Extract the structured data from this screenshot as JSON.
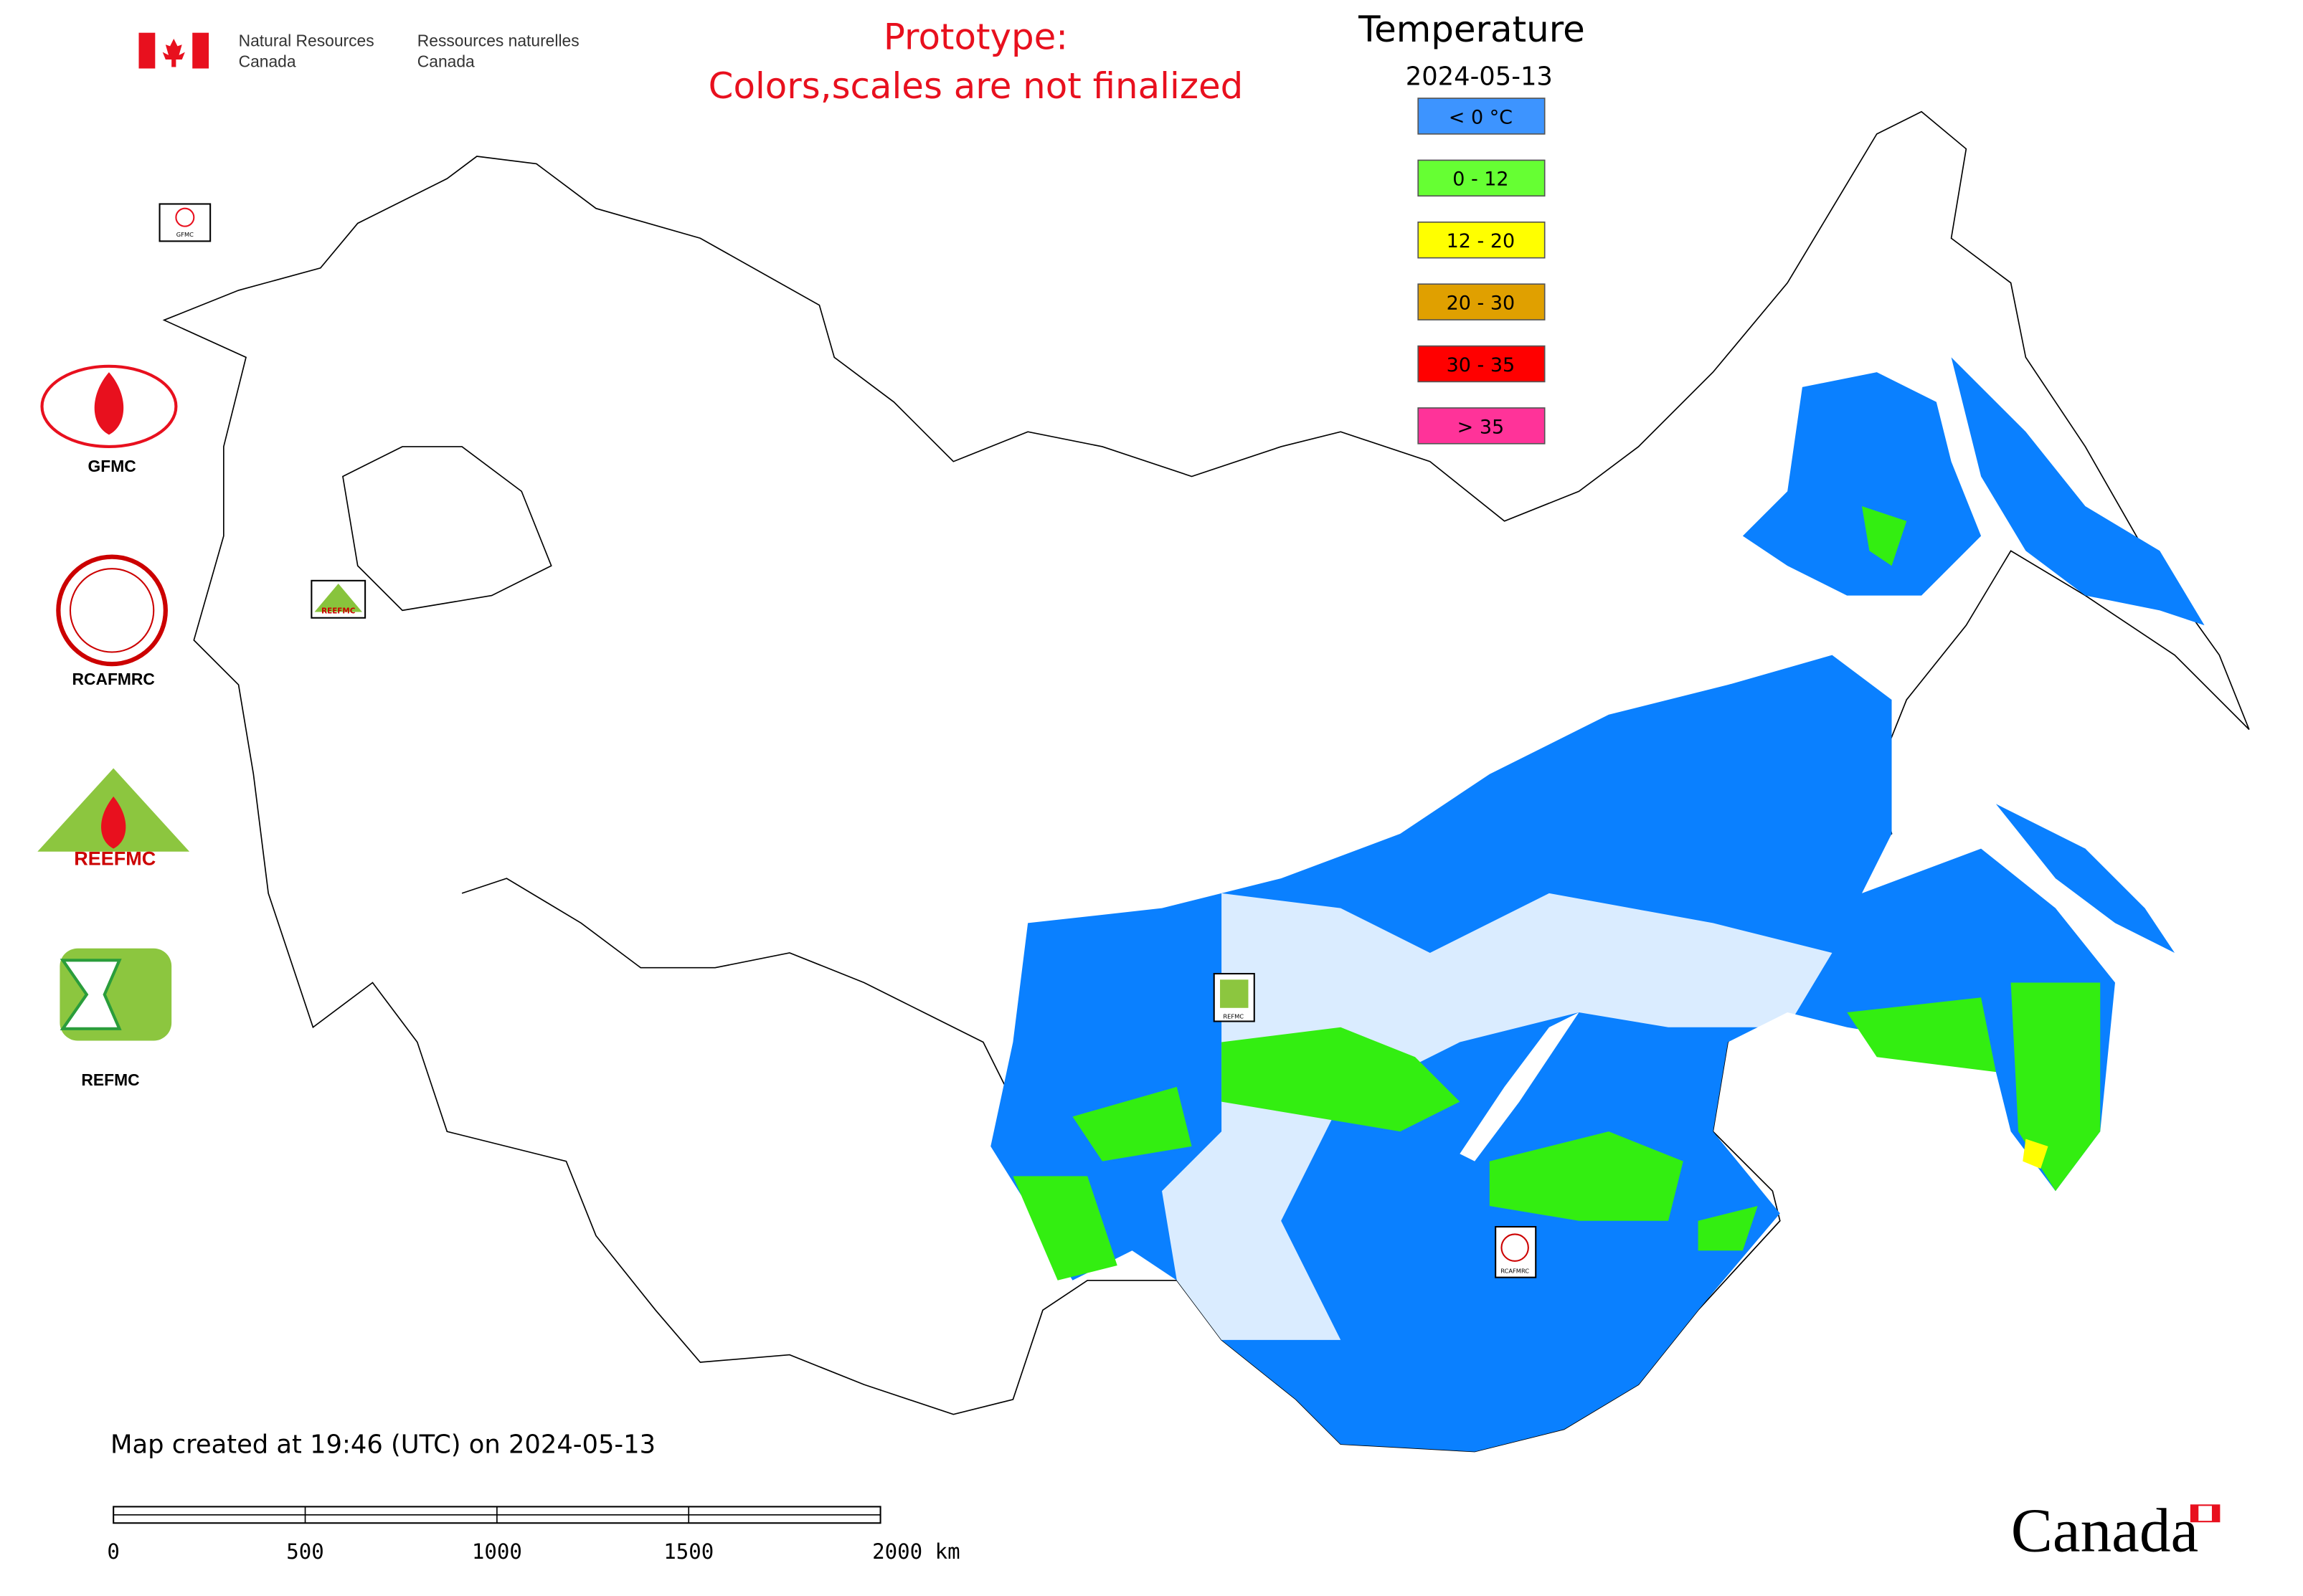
{
  "header": {
    "department_en": [
      "Natural Resources",
      "Canada"
    ],
    "department_fr": [
      "Ressources naturelles",
      "Canada"
    ]
  },
  "notice": [
    "Prototype:",
    "Colors,scales are not finalized"
  ],
  "legend": {
    "title": "Temperature",
    "date": "2024-05-13",
    "items": [
      {
        "label": "< 0 °C",
        "color": "#3d94ff"
      },
      {
        "label": "0 - 12",
        "color": "#66ff33"
      },
      {
        "label": "12 - 20",
        "color": "#ffff00"
      },
      {
        "label": "20 - 30",
        "color": "#e0a000"
      },
      {
        "label": "30 - 35",
        "color": "#ff0000"
      },
      {
        "label": "> 35",
        "color": "#ff3399"
      }
    ]
  },
  "logos": [
    "GFMC",
    "RCAFMRC",
    "REEFMC",
    "REFMC"
  ],
  "map_markers": [
    "GFMC",
    "REEFMC",
    "REFMC",
    "RCAFMRC"
  ],
  "footer": {
    "created": "Map created at 19:46 (UTC) on 2024-05-13",
    "scale_labels": [
      "0",
      "500",
      "1000",
      "1500",
      "2000 km"
    ],
    "wordmark": "Canada"
  }
}
